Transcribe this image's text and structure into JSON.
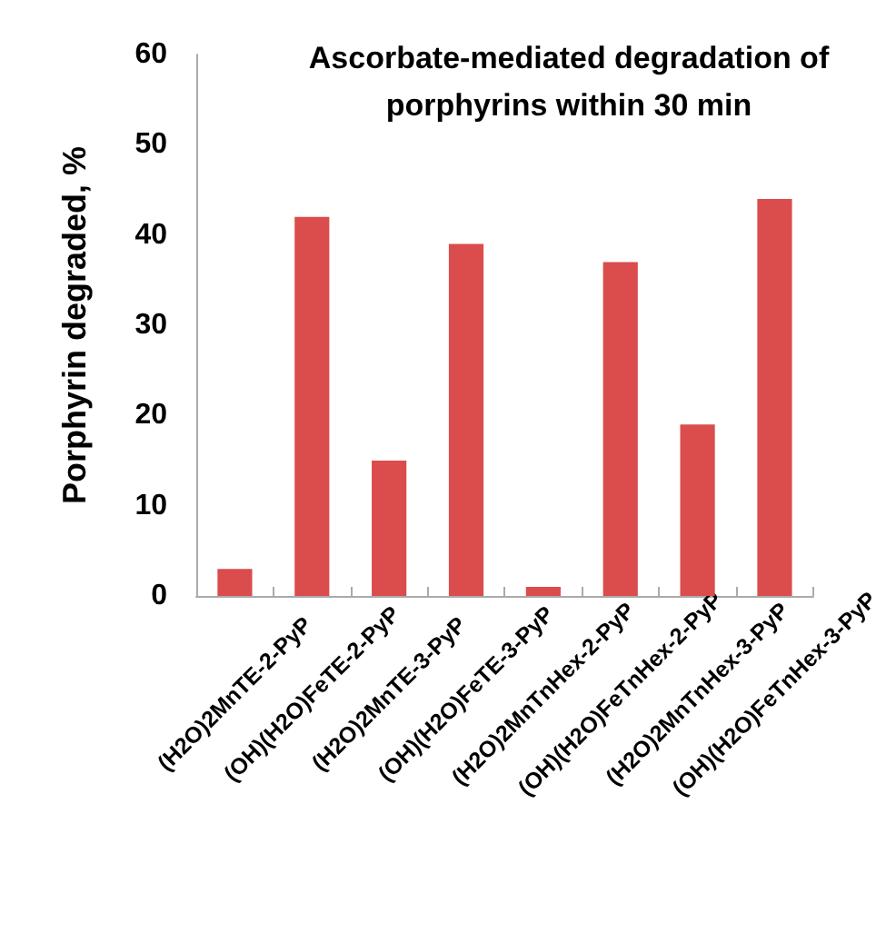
{
  "chart_data": {
    "type": "bar",
    "title": "Ascorbate-mediated degradation of\nporphyrins within 30 min",
    "ylabel": "Porphyrin degraded, %",
    "categories": [
      "(H2O)2MnTE-2-PyP",
      "(OH)(H2O)FeTE-2-PyP",
      "(H2O)2MnTE-3-PyP",
      "(OH)(H2O)FeTE-3-PyP",
      "(H2O)2MnTnHex-2-PyP",
      "(OH)(H2O)FeTnHex-2-PyP",
      "(H2O)2MnTnHex-3-PyP",
      "(OH)(H2O)FeTnHex-3-PyP"
    ],
    "values": [
      3,
      42,
      15,
      39,
      1,
      37,
      19,
      44
    ],
    "color": "#db4c4c",
    "ylim": [
      0,
      60
    ],
    "yticks": [
      0,
      10,
      20,
      30,
      40,
      50,
      60
    ],
    "grid": false
  }
}
